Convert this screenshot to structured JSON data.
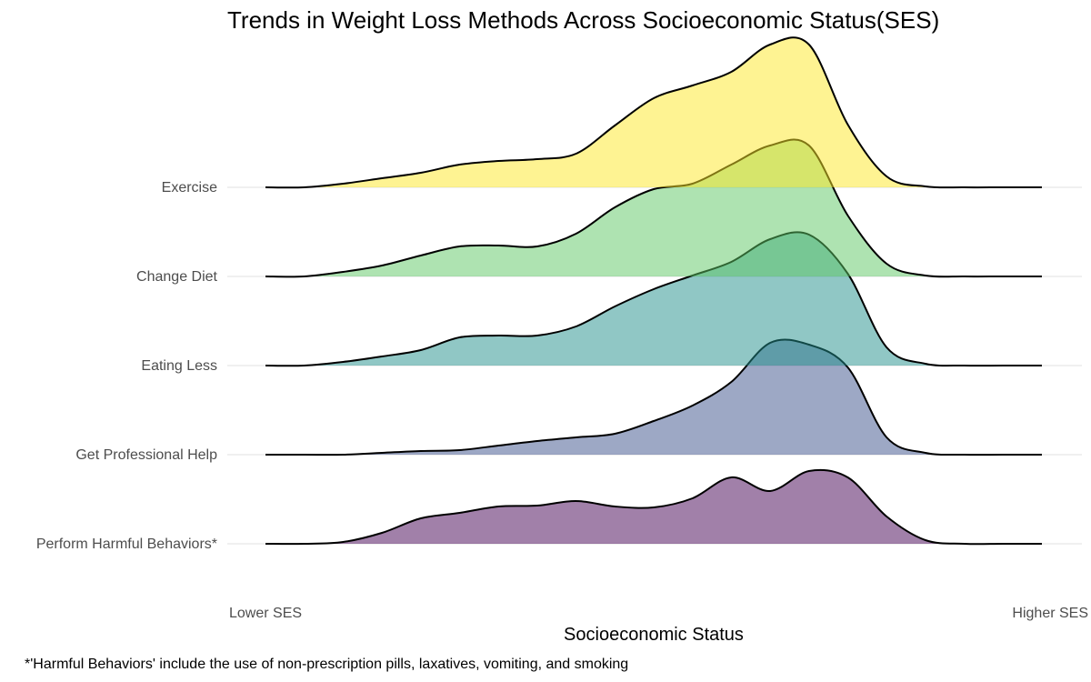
{
  "chart_data": {
    "type": "ridgeline",
    "title": "Trends in Weight Loss Methods Across Socioeconomic Status(SES)",
    "xlabel": "Socioeconomic Status",
    "x_tick_labels": [
      "Lower SES",
      "Higher SES"
    ],
    "caption": "*'Harmful Behaviors' include the use of non-prescription pills, laxatives, vomiting, and smoking",
    "x": [
      0,
      0.05,
      0.1,
      0.15,
      0.2,
      0.25,
      0.3,
      0.35,
      0.4,
      0.45,
      0.5,
      0.55,
      0.6,
      0.65,
      0.7,
      0.75,
      0.8,
      0.85,
      0.9,
      0.95,
      1.0
    ],
    "xlim": [
      0,
      1
    ],
    "series": [
      {
        "name": "Perform Harmful Behaviors*",
        "color": "#440154",
        "density": [
          0.0,
          0.0,
          0.02,
          0.12,
          0.28,
          0.34,
          0.41,
          0.42,
          0.47,
          0.41,
          0.4,
          0.5,
          0.73,
          0.58,
          0.8,
          0.73,
          0.3,
          0.04,
          0.0,
          0.0,
          0.0
        ]
      },
      {
        "name": "Get Professional Help",
        "color": "#3B528B",
        "density": [
          0.0,
          0.0,
          0.0,
          0.02,
          0.04,
          0.05,
          0.1,
          0.15,
          0.19,
          0.23,
          0.37,
          0.54,
          0.8,
          1.23,
          1.21,
          0.96,
          0.19,
          0.02,
          0.0,
          0.0,
          0.0
        ]
      },
      {
        "name": "Eating Less",
        "color": "#21908C",
        "density": [
          0.0,
          0.0,
          0.04,
          0.1,
          0.17,
          0.31,
          0.33,
          0.33,
          0.43,
          0.65,
          0.84,
          0.99,
          1.14,
          1.39,
          1.44,
          1.01,
          0.2,
          0.02,
          0.0,
          0.0,
          0.0
        ]
      },
      {
        "name": "Change Diet",
        "color": "#5DC863",
        "density": [
          0.0,
          0.0,
          0.05,
          0.12,
          0.23,
          0.33,
          0.34,
          0.33,
          0.47,
          0.76,
          0.96,
          1.02,
          1.23,
          1.44,
          1.44,
          0.67,
          0.14,
          0.01,
          0.0,
          0.0,
          0.0
        ]
      },
      {
        "name": "Exercise",
        "color": "#FDE725",
        "density": [
          0.0,
          0.0,
          0.04,
          0.1,
          0.16,
          0.25,
          0.29,
          0.31,
          0.37,
          0.68,
          0.98,
          1.12,
          1.27,
          1.57,
          1.57,
          0.69,
          0.12,
          0.01,
          0.0,
          0.0,
          0.0
        ]
      }
    ],
    "fill_opacity": 0.5,
    "grid": true,
    "legend": "none"
  }
}
